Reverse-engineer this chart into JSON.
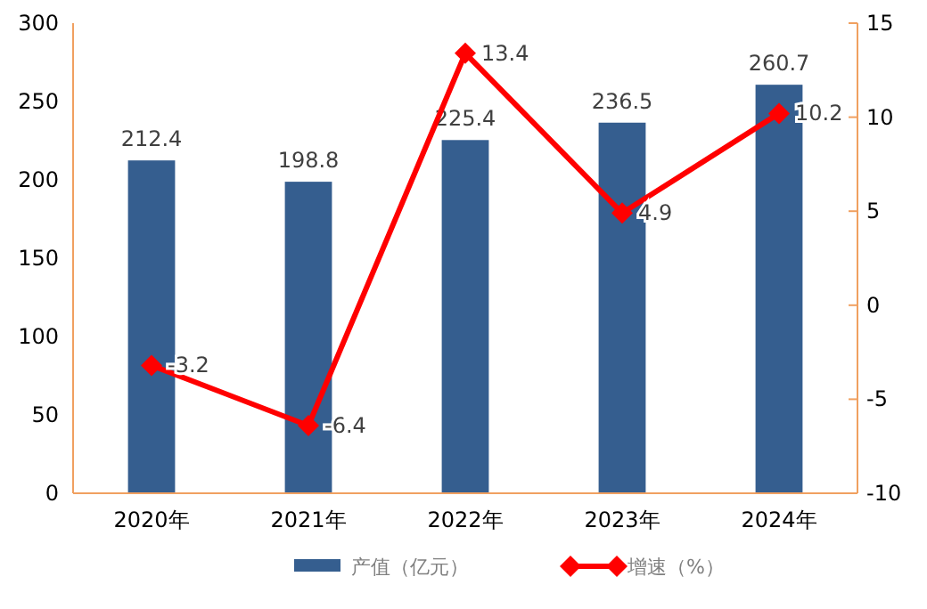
{
  "chart_data": {
    "type": "bar",
    "categories": [
      "2020年",
      "2021年",
      "2022年",
      "2023年",
      "2024年"
    ],
    "series": [
      {
        "name": "产值（亿元）",
        "color": "#355e8f",
        "values": [
          212.4,
          198.8,
          225.4,
          236.5,
          260.7
        ]
      },
      {
        "name": "增速（%）",
        "type": "line",
        "axis": "y2",
        "color": "#ff0000",
        "marker": "diamond",
        "values": [
          -3.2,
          -6.4,
          13.4,
          4.9,
          10.2
        ]
      }
    ],
    "ylim": [
      0,
      300
    ],
    "yticks": [
      0,
      50,
      100,
      150,
      200,
      250,
      300
    ],
    "y2lim": [
      -10,
      15
    ],
    "y2ticks": [
      -10,
      -5,
      0,
      5,
      10,
      15
    ],
    "data_labels": true,
    "legend": "bottom",
    "grid": false
  }
}
